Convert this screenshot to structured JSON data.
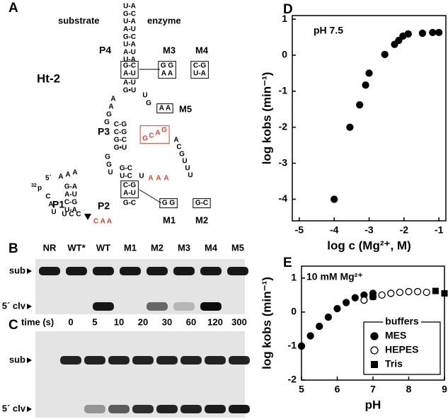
{
  "panel_labels": [
    "A",
    "B",
    "C",
    "D",
    "E"
  ],
  "diagram": {
    "substrate": "substrate",
    "enzyme": "enzyme",
    "construct": "Ht-2",
    "regions": [
      "P4",
      "M3",
      "M4",
      "M5",
      "P3",
      "P1",
      "P2",
      "M1",
      "M2"
    ],
    "end_label": "5´",
    "isotope": "32",
    "isotope_atom": "p",
    "groups": [
      {
        "items": [
          "U-A",
          "G-C",
          "U-A",
          "A-U",
          "G-C",
          "U-A",
          "A-U",
          "U-A"
        ],
        "color": "#000000"
      },
      {
        "items": [
          "G-C",
          "A-U"
        ],
        "color": "#000000"
      },
      {
        "items": [
          "G G",
          "A A"
        ],
        "color": "#000000"
      },
      {
        "items": [
          "C-G",
          "U-A"
        ],
        "color": "#000000"
      },
      {
        "items": [
          "A-U",
          "G•U"
        ],
        "color": "#000000"
      },
      {
        "items": [
          "A",
          "A",
          "G",
          "G"
        ],
        "color": "#000000"
      },
      {
        "items": [
          "U",
          "G"
        ],
        "color": "#000000"
      },
      {
        "items": [
          "A A"
        ],
        "color": "#000000"
      },
      {
        "items": [
          "C-G",
          "C-G",
          "G-C",
          "G•U"
        ],
        "color": "#000000"
      },
      {
        "items": [
          "G",
          "C",
          "A",
          "G"
        ],
        "color": "#d9432f"
      },
      {
        "items": [
          "A",
          "C",
          "G",
          "U",
          "U",
          "U"
        ],
        "color": "#000000"
      },
      {
        "items": [
          "G",
          "G",
          "U"
        ],
        "color": "#000000"
      },
      {
        "items": [
          "G-C",
          "U-C"
        ],
        "color": "#000000"
      },
      {
        "items": [
          "U"
        ],
        "color": "#000000"
      },
      {
        "items": [
          "A",
          "A",
          "A"
        ],
        "color": "#d9432f"
      },
      {
        "items": [
          "C-G",
          "A-U"
        ],
        "color": "#000000"
      },
      {
        "items": [
          "G-C"
        ],
        "color": "#000000"
      },
      {
        "items": [
          "G  G"
        ],
        "color": "#000000"
      },
      {
        "items": [
          "G-C"
        ],
        "color": "#000000"
      },
      {
        "items": [
          "A",
          "A",
          "A"
        ],
        "color": "#000000"
      },
      {
        "items": [
          "G-A",
          "A-U",
          "C-G",
          "U-A"
        ],
        "color": "#000000"
      },
      {
        "items": [
          "C",
          "A",
          "U"
        ],
        "color": "#000000"
      },
      {
        "items": [
          "U C C"
        ],
        "color": "#000000"
      },
      {
        "items": [
          "C A A"
        ],
        "color": "#d9432f"
      }
    ]
  },
  "gel_b": {
    "lanes": [
      "NR",
      "WT*",
      "WT",
      "M1",
      "M2",
      "M3",
      "M4",
      "M5"
    ],
    "bands": [
      "sub",
      "5´ clv"
    ]
  },
  "gel_c": {
    "axis_label": "time (s)",
    "lanes": [
      0,
      5,
      10,
      20,
      30,
      60,
      120,
      300
    ],
    "bands": [
      "sub",
      "5´ clv"
    ]
  },
  "chart_data": [
    {
      "type": "scatter",
      "title": "pH 7.5",
      "x_label": "log c (Mg²⁺, M)",
      "y_label": "log kobs (min⁻¹)",
      "series": [
        {
          "color": "#000000",
          "marker": "circle-filled",
          "x": [
            -4.0,
            -3.55,
            -3.27,
            -3.1,
            -3.0,
            -2.55,
            -2.27,
            -2.15,
            -2.03,
            -1.88,
            -1.47,
            -1.18,
            -1.0
          ],
          "values": [
            -4.0,
            -2.0,
            -1.38,
            -0.83,
            -0.5,
            0.02,
            0.3,
            0.41,
            0.53,
            0.59,
            0.61,
            0.63,
            0.63
          ]
        }
      ],
      "xlim": [
        -5.2,
        -0.8
      ],
      "ylim": [
        -4.6,
        1.1
      ],
      "xticks": [
        -5,
        -4,
        -3,
        -2,
        -1
      ],
      "yticks": [
        -4,
        -3,
        -2,
        -1,
        0,
        1
      ]
    },
    {
      "type": "scatter",
      "annotation": "10 mM Mg²⁺",
      "x_label": "pH",
      "y_label": "log kobs (min⁻¹)",
      "legend_title": "buffers",
      "legend": "lower-right",
      "series": [
        {
          "name": "MES",
          "color": "#000000",
          "marker": "circle-filled",
          "x": [
            5,
            5.25,
            5.5,
            5.75,
            6,
            6.25,
            6.5,
            6.75,
            7
          ],
          "values": [
            -1,
            -0.7,
            -0.42,
            -0.15,
            0.1,
            0.28,
            0.42,
            0.5,
            0.55
          ]
        },
        {
          "name": "HEPES",
          "color": "#000000",
          "marker": "circle-open",
          "x": [
            6.75,
            7,
            7.25,
            7.5,
            7.75,
            8,
            8.25,
            8.5
          ],
          "values": [
            0.35,
            0.45,
            0.5,
            0.55,
            0.58,
            0.6,
            0.6,
            0.58
          ]
        },
        {
          "name": "Tris",
          "color": "#000000",
          "marker": "square-filled",
          "x": [
            7,
            8.75,
            9
          ],
          "values": [
            0.45,
            0.62,
            0.55
          ]
        }
      ],
      "xlim": [
        5,
        9
      ],
      "ylim": [
        -2,
        1.35
      ],
      "xticks": [
        5,
        6,
        7,
        8,
        9
      ],
      "yticks": [
        -2,
        -1,
        0,
        1
      ]
    }
  ]
}
